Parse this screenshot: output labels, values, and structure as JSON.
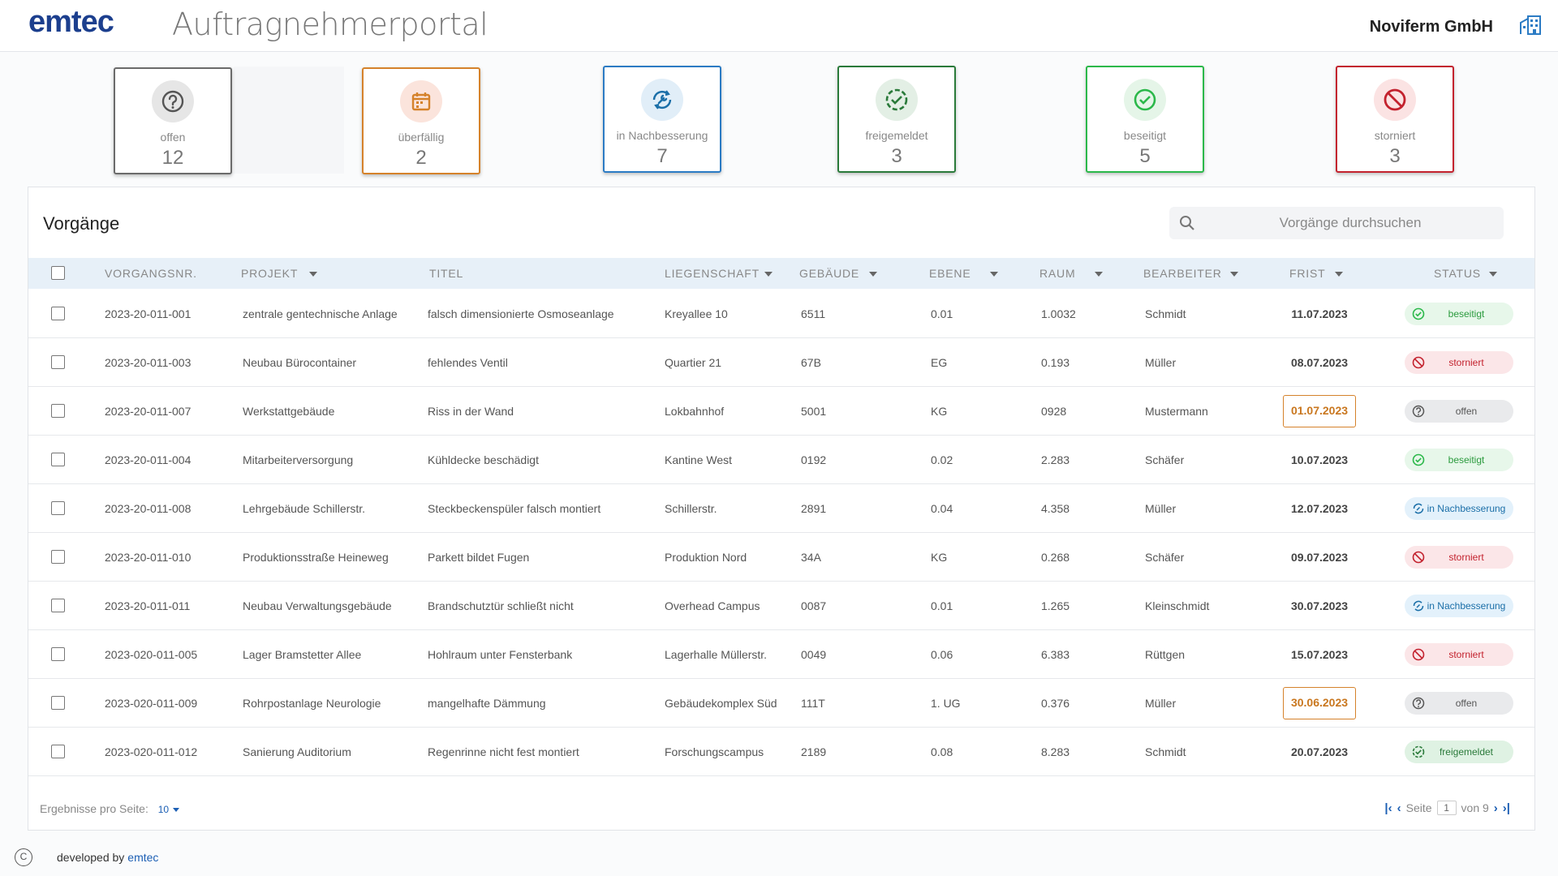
{
  "header": {
    "logo": "emtec",
    "portal_title": "Auftragnehmerportal",
    "company": "Noviferm GmbH",
    "icon": "building-icon"
  },
  "status_cards": [
    {
      "label": "offen",
      "count": "12",
      "color": "#6b6b6b",
      "icon": "question-icon"
    },
    {
      "label": "überfällig",
      "count": "2",
      "color": "#d5822b",
      "icon": "calendar-icon"
    },
    {
      "label": "in Nachbesserung",
      "count": "7",
      "color": "#2b7bc4",
      "icon": "repair-icon"
    },
    {
      "label": "freigemeldet",
      "count": "3",
      "color": "#2a7a3a",
      "icon": "dashed-check-icon"
    },
    {
      "label": "beseitigt",
      "count": "5",
      "color": "#2bb84a",
      "icon": "check-circle-icon"
    },
    {
      "label": "storniert",
      "count": "3",
      "color": "#c3222e",
      "icon": "cancel-icon"
    }
  ],
  "panel": {
    "title": "Vorgänge",
    "search_placeholder": "Vorgänge durchsuchen"
  },
  "table": {
    "columns": [
      "VORGANGSNR.",
      "PROJEKT",
      "TITEL",
      "LIEGENSCHAFT",
      "GEBÄUDE",
      "EBENE",
      "RAUM",
      "BEARBEITER",
      "FRIST",
      "STATUS"
    ],
    "rows": [
      {
        "nr": "2023-20-011-001",
        "projekt": "zentrale gentechnische Anlage",
        "titel": "falsch dimensionierte Osmoseanlage",
        "liegenschaft": "Kreyallee 10",
        "gebaeude": "6511",
        "ebene": "0.01",
        "raum": "1.0032",
        "bearbeiter": "Schmidt",
        "frist": "11.07.2023",
        "overdue": false,
        "status": "beseitigt"
      },
      {
        "nr": "2023-20-011-003",
        "projekt": "Neubau Bürocontainer",
        "titel": "fehlendes Ventil",
        "liegenschaft": "Quartier 21",
        "gebaeude": "67B",
        "ebene": "EG",
        "raum": "0.193",
        "bearbeiter": "Müller",
        "frist": "08.07.2023",
        "overdue": false,
        "status": "storniert"
      },
      {
        "nr": "2023-20-011-007",
        "projekt": "Werkstattgebäude",
        "titel": "Riss in der Wand",
        "liegenschaft": "Lokbahnhof",
        "gebaeude": "5001",
        "ebene": "KG",
        "raum": "0928",
        "bearbeiter": "Mustermann",
        "frist": "01.07.2023",
        "overdue": true,
        "status": "offen"
      },
      {
        "nr": "2023-20-011-004",
        "projekt": "Mitarbeiterversorgung",
        "titel": "Kühldecke beschädigt",
        "liegenschaft": "Kantine West",
        "gebaeude": "0192",
        "ebene": "0.02",
        "raum": "2.283",
        "bearbeiter": "Schäfer",
        "frist": "10.07.2023",
        "overdue": false,
        "status": "beseitigt"
      },
      {
        "nr": "2023-20-011-008",
        "projekt": "Lehrgebäude Schillerstr.",
        "titel": "Steckbeckenspüler falsch montiert",
        "liegenschaft": "Schillerstr.",
        "gebaeude": "2891",
        "ebene": "0.04",
        "raum": "4.358",
        "bearbeiter": "Müller",
        "frist": "12.07.2023",
        "overdue": false,
        "status": "in Nachbesserung"
      },
      {
        "nr": "2023-20-011-010",
        "projekt": "Produktionsstraße Heineweg",
        "titel": "Parkett bildet Fugen",
        "liegenschaft": "Produktion Nord",
        "gebaeude": "34A",
        "ebene": "KG",
        "raum": "0.268",
        "bearbeiter": "Schäfer",
        "frist": "09.07.2023",
        "overdue": false,
        "status": "storniert"
      },
      {
        "nr": "2023-20-011-011",
        "projekt": "Neubau Verwaltungsgebäude",
        "titel": "Brandschutztür schließt nicht",
        "liegenschaft": "Overhead Campus",
        "gebaeude": "0087",
        "ebene": "0.01",
        "raum": "1.265",
        "bearbeiter": "Kleinschmidt",
        "frist": "30.07.2023",
        "overdue": false,
        "status": "in Nachbesserung"
      },
      {
        "nr": "2023-020-011-005",
        "projekt": "Lager Bramstetter Allee",
        "titel": "Hohlraum unter Fensterbank",
        "liegenschaft": "Lagerhalle Müllerstr.",
        "gebaeude": "0049",
        "ebene": "0.06",
        "raum": "6.383",
        "bearbeiter": "Rüttgen",
        "frist": "15.07.2023",
        "overdue": false,
        "status": "storniert"
      },
      {
        "nr": "2023-020-011-009",
        "projekt": "Rohrpostanlage Neurologie",
        "titel": "mangelhafte Dämmung",
        "liegenschaft": "Gebäudekomplex Süd",
        "gebaeude": "111T",
        "ebene": "1. UG",
        "raum": "0.376",
        "bearbeiter": "Müller",
        "frist": "30.06.2023",
        "overdue": true,
        "status": "offen"
      },
      {
        "nr": "2023-020-011-012",
        "projekt": "Sanierung Auditorium",
        "titel": "Regenrinne nicht fest montiert",
        "liegenschaft": "Forschungscampus",
        "gebaeude": "2189",
        "ebene": "0.08",
        "raum": "8.283",
        "bearbeiter": "Schmidt",
        "frist": "20.07.2023",
        "overdue": false,
        "status": "freigemeldet"
      }
    ]
  },
  "pagination": {
    "per_page_label": "Ergebnisse pro Seite:",
    "per_page": "10",
    "page_label": "Seite",
    "page": "1",
    "of_label": "von 9"
  },
  "footer": {
    "copyright_symbol": "C",
    "developed_by": "developed by",
    "brand": "emtec"
  }
}
